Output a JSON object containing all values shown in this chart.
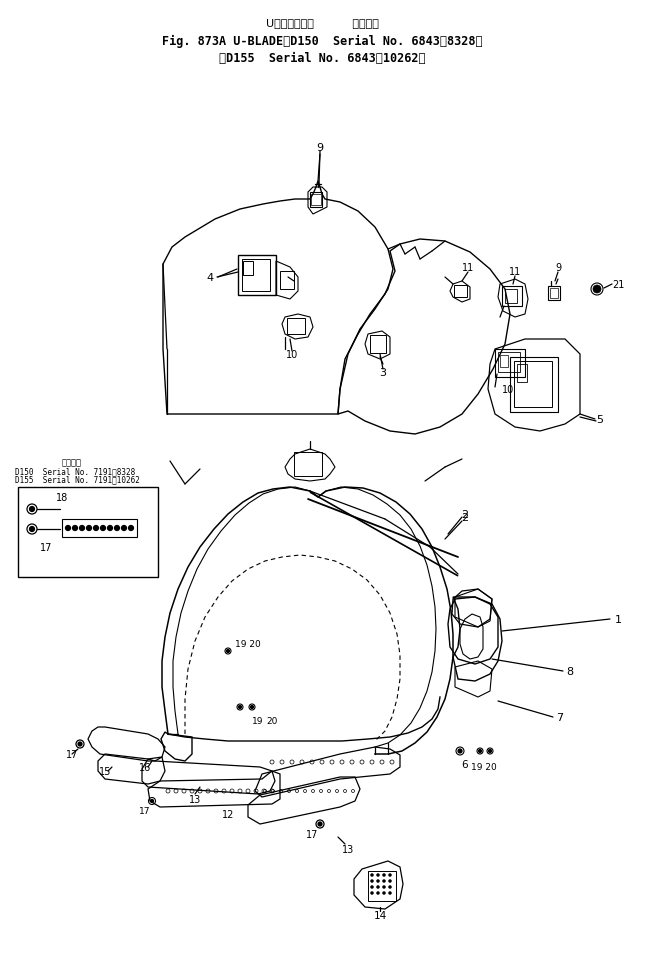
{
  "bg_color": "#ffffff",
  "line_color": "#000000",
  "fig_width": 6.45,
  "fig_height": 9.62,
  "title1": "U・ブレード（           適用号機",
  "title2": "Fig. 873A U-BLADE（D150  Serial No. 6843～8328）",
  "title3": "（D155  Serial No. 6843～10262）",
  "inset_title": "適用号機",
  "inset_d150": "D150  Serial No. 7191～8328",
  "inset_d155": "D155  Serial No. 7191～10262"
}
